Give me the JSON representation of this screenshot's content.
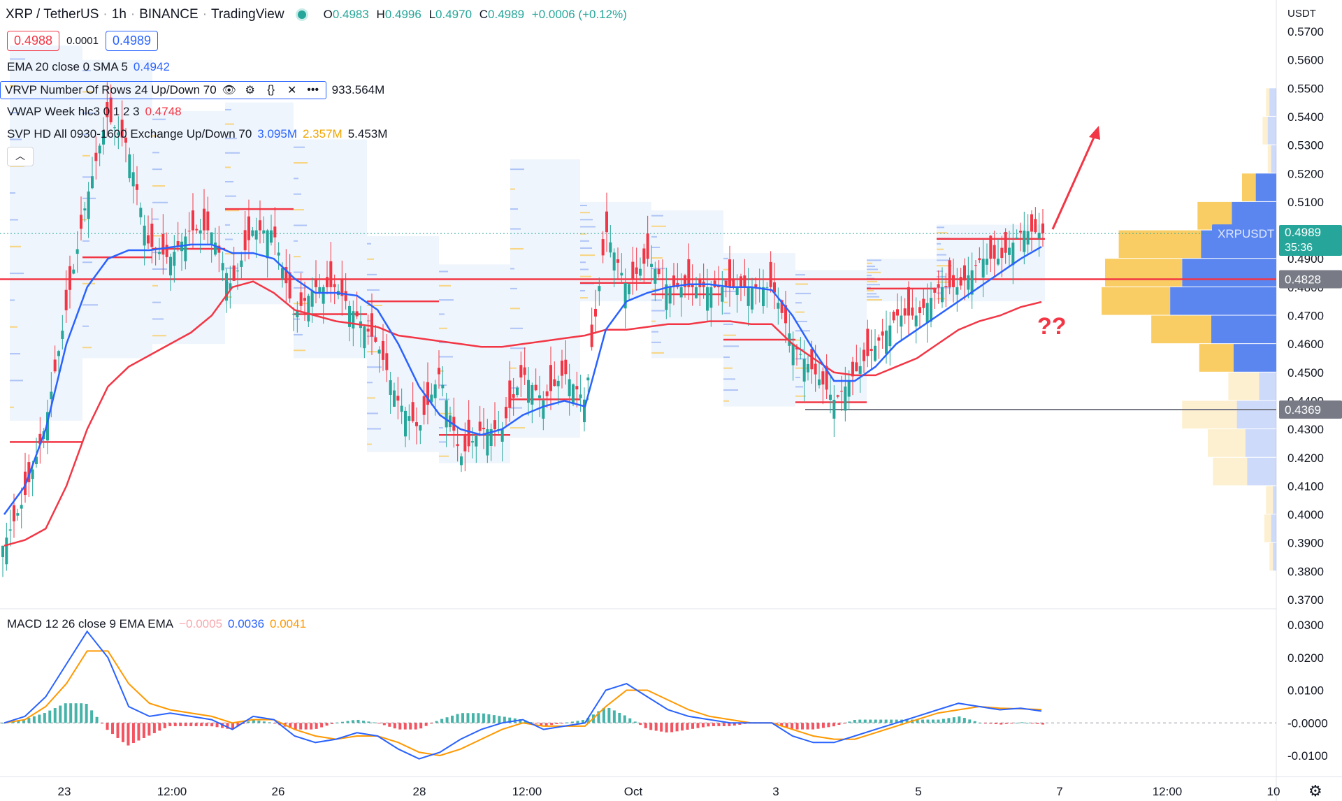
{
  "header": {
    "symbol": "XRP / TetherUS",
    "interval": "1h",
    "exchange": "BINANCE",
    "platform": "TradingView",
    "ohlc": {
      "o": "0.4983",
      "h": "0.4996",
      "l": "0.4970",
      "c": "0.4989",
      "chg": "+0.0006 (+0.12%)"
    },
    "ohlc_labels": {
      "o": "O",
      "h": "H",
      "l": "L",
      "c": "C"
    }
  },
  "trade": {
    "sell": "0.4988",
    "spread": "0.0001",
    "buy": "0.4989"
  },
  "indicators": {
    "ema": {
      "label": "EMA 20 close 0 SMA 5",
      "value": "0.4942"
    },
    "vrvp": {
      "label": "VRVP Number Of Rows 24 Up/Down 70",
      "value": "933.564M"
    },
    "vwap": {
      "label": "VWAP Week hlc3 0 1 2 3",
      "value": "0.4748"
    },
    "svp": {
      "label": "SVP HD All 0930-1600 Exchange Up/Down 70",
      "up": "3.095M",
      "down": "2.357M",
      "total": "5.453M"
    },
    "macd": {
      "label": "MACD 12 26 close 9 EMA EMA",
      "hist": "−0.0005",
      "macd": "0.0036",
      "signal": "0.0041"
    }
  },
  "annotation": {
    "question": "??"
  },
  "price_axis": {
    "currency": "USDT",
    "ticks": [
      "0.5700",
      "0.5600",
      "0.5500",
      "0.5400",
      "0.5300",
      "0.5200",
      "0.5100",
      "0.4900",
      "0.4800",
      "0.4700",
      "0.4600",
      "0.4500",
      "0.4400",
      "0.4300",
      "0.4200",
      "0.4100",
      "0.4000",
      "0.3900",
      "0.3800",
      "0.3700"
    ],
    "tags": {
      "symbol": "XRPUSDT",
      "last": "0.4989",
      "countdown": "35:36",
      "line_level": "0.4828",
      "support": "0.4369"
    }
  },
  "macd_axis": {
    "ticks": [
      "0.0300",
      "0.0200",
      "0.0100",
      "-0.0000",
      "-0.0100"
    ]
  },
  "time_axis": {
    "labels": [
      "23",
      "12:00",
      "26",
      "28",
      "12:00",
      "Oct",
      "3",
      "5",
      "7",
      "12:00",
      "10"
    ]
  },
  "colors": {
    "up": "#26a69a",
    "down": "#f23645",
    "ema": "#2962ff",
    "vwap": "#f23645",
    "signal": "#ff9800",
    "vp_up": "#f9cd63",
    "vp_down": "#5b86f0",
    "level": "#f23645",
    "support": "#787b86"
  },
  "chart_data": {
    "type": "line",
    "price_range": [
      0.37,
      0.575
    ],
    "support_level": 0.4369,
    "resistance_level": 0.4828,
    "close": [
      0.389,
      0.405,
      0.43,
      0.47,
      0.51,
      0.54,
      0.53,
      0.495,
      0.49,
      0.5,
      0.5,
      0.48,
      0.5,
      0.5,
      0.47,
      0.48,
      0.48,
      0.47,
      0.46,
      0.44,
      0.43,
      0.45,
      0.42,
      0.43,
      0.43,
      0.45,
      0.44,
      0.45,
      0.44,
      0.5,
      0.48,
      0.49,
      0.48,
      0.48,
      0.48,
      0.48,
      0.48,
      0.48,
      0.46,
      0.45,
      0.44,
      0.45,
      0.46,
      0.47,
      0.47,
      0.48,
      0.48,
      0.49,
      0.49,
      0.5,
      0.499
    ],
    "ema20": [
      0.4,
      0.41,
      0.43,
      0.46,
      0.48,
      0.49,
      0.493,
      0.493,
      0.494,
      0.495,
      0.495,
      0.492,
      0.492,
      0.49,
      0.483,
      0.478,
      0.478,
      0.477,
      0.472,
      0.46,
      0.445,
      0.435,
      0.43,
      0.428,
      0.43,
      0.435,
      0.438,
      0.44,
      0.438,
      0.465,
      0.475,
      0.478,
      0.48,
      0.481,
      0.481,
      0.48,
      0.48,
      0.479,
      0.47,
      0.458,
      0.447,
      0.447,
      0.452,
      0.46,
      0.465,
      0.47,
      0.475,
      0.48,
      0.485,
      0.49,
      0.4942
    ],
    "vwap": [
      0.389,
      0.391,
      0.395,
      0.41,
      0.43,
      0.445,
      0.452,
      0.456,
      0.46,
      0.464,
      0.47,
      0.48,
      0.482,
      0.478,
      0.472,
      0.47,
      0.468,
      0.467,
      0.466,
      0.463,
      0.462,
      0.461,
      0.46,
      0.459,
      0.459,
      0.46,
      0.461,
      0.462,
      0.463,
      0.465,
      0.465,
      0.466,
      0.467,
      0.467,
      0.468,
      0.468,
      0.467,
      0.467,
      0.46,
      0.455,
      0.45,
      0.449,
      0.449,
      0.452,
      0.455,
      0.46,
      0.465,
      0.468,
      0.47,
      0.473,
      0.4748
    ],
    "macd": [
      0.0,
      0.002,
      0.008,
      0.018,
      0.028,
      0.02,
      0.005,
      0.002,
      0.003,
      0.002,
      0.001,
      -0.002,
      0.002,
      0.001,
      -0.004,
      -0.006,
      -0.005,
      -0.003,
      -0.004,
      -0.008,
      -0.011,
      -0.009,
      -0.005,
      -0.002,
      0.0,
      0.001,
      -0.002,
      -0.001,
      0.0,
      0.01,
      0.012,
      0.008,
      0.004,
      0.002,
      0.001,
      0.0,
      0.0,
      0.0,
      -0.004,
      -0.006,
      -0.006,
      -0.004,
      -0.002,
      0.0,
      0.002,
      0.004,
      0.006,
      0.005,
      0.004,
      0.0045,
      0.0036
    ],
    "signal": [
      0.0,
      0.001,
      0.005,
      0.012,
      0.022,
      0.022,
      0.012,
      0.006,
      0.004,
      0.003,
      0.002,
      0.0,
      0.001,
      0.001,
      -0.002,
      -0.004,
      -0.005,
      -0.004,
      -0.004,
      -0.006,
      -0.009,
      -0.01,
      -0.008,
      -0.005,
      -0.002,
      0.0,
      -0.001,
      -0.001,
      -0.001,
      0.005,
      0.01,
      0.01,
      0.007,
      0.004,
      0.002,
      0.001,
      0.0,
      0.0,
      -0.002,
      -0.004,
      -0.005,
      -0.005,
      -0.003,
      -0.001,
      0.001,
      0.003,
      0.004,
      0.005,
      0.0045,
      0.0043,
      0.0041
    ],
    "macd_range": [
      -0.012,
      0.032
    ],
    "profile_rows": [
      {
        "price": 0.545,
        "up": 2,
        "down": 4
      },
      {
        "price": 0.535,
        "up": 3,
        "down": 5
      },
      {
        "price": 0.525,
        "up": 2,
        "down": 3
      },
      {
        "price": 0.515,
        "up": 8,
        "down": 12
      },
      {
        "price": 0.505,
        "up": 20,
        "down": 26
      },
      {
        "price": 0.495,
        "up": 48,
        "down": 44
      },
      {
        "price": 0.485,
        "up": 45,
        "down": 55
      },
      {
        "price": 0.475,
        "up": 40,
        "down": 62
      },
      {
        "price": 0.465,
        "up": 35,
        "down": 38
      },
      {
        "price": 0.455,
        "up": 20,
        "down": 25
      },
      {
        "price": 0.445,
        "up": 18,
        "down": 10
      },
      {
        "price": 0.435,
        "up": 32,
        "down": 23
      },
      {
        "price": 0.425,
        "up": 22,
        "down": 18
      },
      {
        "price": 0.415,
        "up": 20,
        "down": 17
      },
      {
        "price": 0.405,
        "up": 4,
        "down": 2
      },
      {
        "price": 0.395,
        "up": 4,
        "down": 3
      },
      {
        "price": 0.385,
        "up": 2,
        "down": 2
      }
    ]
  }
}
